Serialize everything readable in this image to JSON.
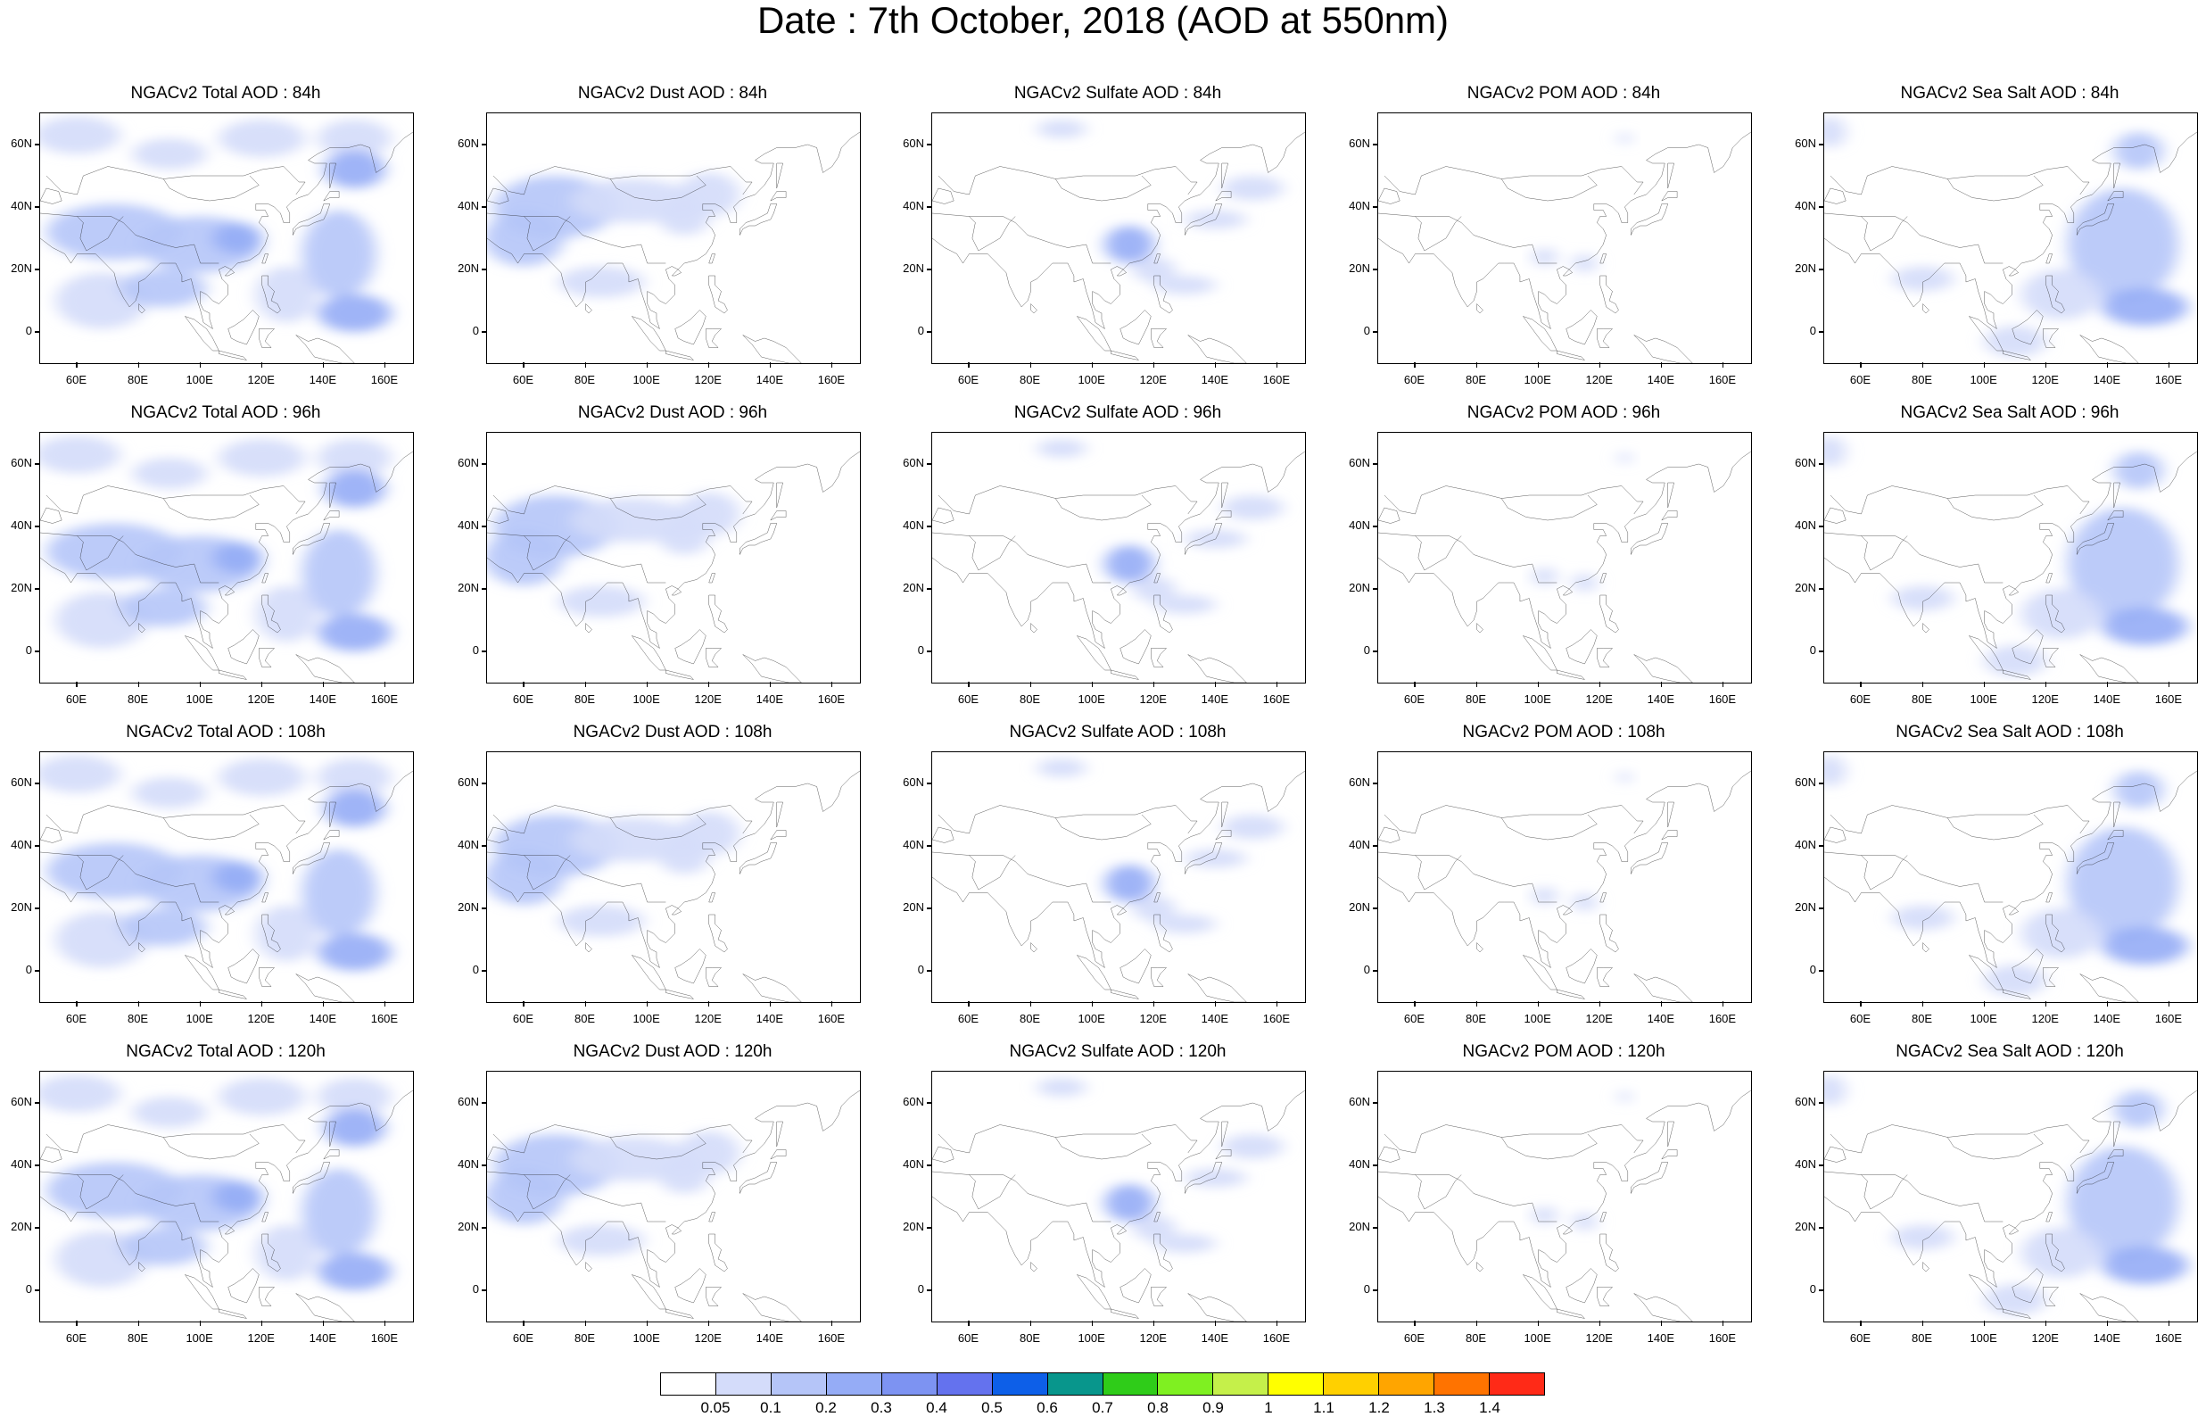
{
  "title": "Date : 7th October, 2018 (AOD at 550nm)",
  "lat_labels": [
    "60N",
    "40N",
    "20N",
    "0"
  ],
  "lon_labels": [
    "60E",
    "80E",
    "100E",
    "120E",
    "140E",
    "160E"
  ],
  "panels": [
    {
      "title": "NGACv2 Total AOD : 84h",
      "species": "total",
      "hour": 84
    },
    {
      "title": "NGACv2 Dust AOD : 84h",
      "species": "dust",
      "hour": 84
    },
    {
      "title": "NGACv2 Sulfate AOD : 84h",
      "species": "sulfate",
      "hour": 84
    },
    {
      "title": "NGACv2 POM AOD : 84h",
      "species": "pom",
      "hour": 84
    },
    {
      "title": "NGACv2 Sea Salt AOD : 84h",
      "species": "seasalt",
      "hour": 84
    },
    {
      "title": "NGACv2 Total AOD : 96h",
      "species": "total",
      "hour": 96
    },
    {
      "title": "NGACv2 Dust AOD : 96h",
      "species": "dust",
      "hour": 96
    },
    {
      "title": "NGACv2 Sulfate AOD : 96h",
      "species": "sulfate",
      "hour": 96
    },
    {
      "title": "NGACv2 POM AOD : 96h",
      "species": "pom",
      "hour": 96
    },
    {
      "title": "NGACv2 Sea Salt AOD : 96h",
      "species": "seasalt",
      "hour": 96
    },
    {
      "title": "NGACv2 Total AOD : 108h",
      "species": "total",
      "hour": 108
    },
    {
      "title": "NGACv2 Dust AOD : 108h",
      "species": "dust",
      "hour": 108
    },
    {
      "title": "NGACv2 Sulfate AOD : 108h",
      "species": "sulfate",
      "hour": 108
    },
    {
      "title": "NGACv2 POM AOD : 108h",
      "species": "pom",
      "hour": 108
    },
    {
      "title": "NGACv2 Sea Salt AOD : 108h",
      "species": "seasalt",
      "hour": 108
    },
    {
      "title": "NGACv2 Total AOD : 120h",
      "species": "total",
      "hour": 120
    },
    {
      "title": "NGACv2 Dust AOD : 120h",
      "species": "dust",
      "hour": 120
    },
    {
      "title": "NGACv2 Sulfate AOD : 120h",
      "species": "sulfate",
      "hour": 120
    },
    {
      "title": "NGACv2 POM AOD : 120h",
      "species": "pom",
      "hour": 120
    },
    {
      "title": "NGACv2 Sea Salt  AOD : 120h",
      "species": "seasalt",
      "hour": 120
    }
  ],
  "colorbar": {
    "labels": [
      "0.05",
      "0.1",
      "0.2",
      "0.3",
      "0.4",
      "0.5",
      "0.6",
      "0.7",
      "0.8",
      "0.9",
      "1",
      "1.1",
      "1.2",
      "1.3",
      "1.4"
    ],
    "colors": [
      "#ffffff",
      "#d4dcfa",
      "#b5c5f8",
      "#95acf6",
      "#7d93f2",
      "#6472ee",
      "#0d5fe8",
      "#08968c",
      "#2fcc19",
      "#7ff021",
      "#c5f04a",
      "#ffff00",
      "#ffd000",
      "#ffa500",
      "#ff7300",
      "#ff2a17"
    ]
  }
}
